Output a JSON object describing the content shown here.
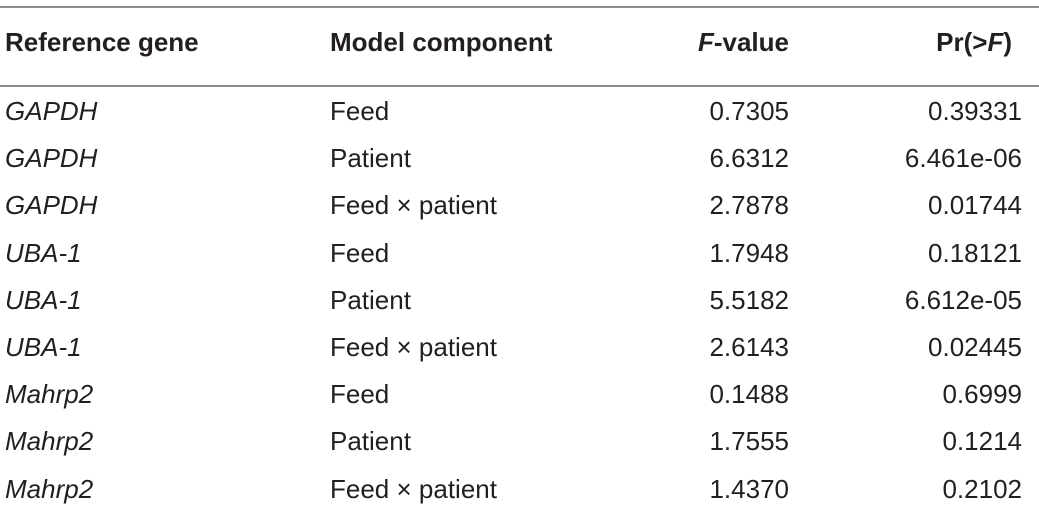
{
  "table": {
    "headers": {
      "col1": "Reference gene",
      "col2": "Model component",
      "col3_italic": "F",
      "col3_rest": "-value",
      "col4_pre": "Pr(>",
      "col4_italic": "F",
      "col4_post": ")"
    },
    "rows": [
      {
        "gene": "GAPDH",
        "component": "Feed",
        "f_value": "0.7305",
        "pr": "0.39331"
      },
      {
        "gene": "GAPDH",
        "component": "Patient",
        "f_value": "6.6312",
        "pr": "6.461e-06"
      },
      {
        "gene": "GAPDH",
        "component": "Feed × patient",
        "f_value": "2.7878",
        "pr": "0.01744"
      },
      {
        "gene": "UBA-1",
        "component": "Feed",
        "f_value": "1.7948",
        "pr": "0.18121"
      },
      {
        "gene": "UBA-1",
        "component": "Patient",
        "f_value": "5.5182",
        "pr": "6.612e-05"
      },
      {
        "gene": "UBA-1",
        "component": "Feed × patient",
        "f_value": "2.6143",
        "pr": "0.02445"
      },
      {
        "gene": "Mahrp2",
        "component": "Feed",
        "f_value": "0.1488",
        "pr": "0.6999"
      },
      {
        "gene": "Mahrp2",
        "component": "Patient",
        "f_value": "1.7555",
        "pr": "0.1214"
      },
      {
        "gene": "Mahrp2",
        "component": "Feed × patient",
        "f_value": "1.4370",
        "pr": "0.2102"
      }
    ]
  }
}
